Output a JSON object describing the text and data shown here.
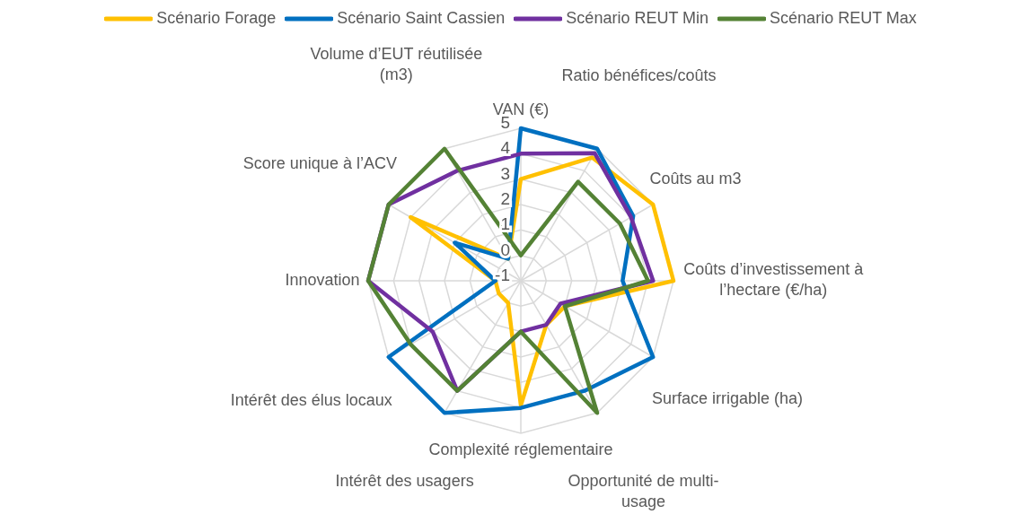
{
  "chart_data": {
    "type": "radar",
    "categories": [
      "VAN (€)",
      "Ratio bénéfices/coûts",
      "Coûts au m3",
      "Coûts d’investissement à l’hectare (€/ha)",
      "Surface irrigable (ha)",
      "Opportunité de multi-usage",
      "Complexité réglementaire",
      "Intérêt des usagers",
      "Intérêt des élus locaux",
      "Innovation",
      "Score unique à l’ACV",
      "Volume d’EUT réutilisée (m3)"
    ],
    "series": [
      {
        "name": "Scénario Forage",
        "color": "#ffc000",
        "values": [
          3,
          4.6,
          5,
          5,
          1,
          1,
          3.9,
          0,
          0,
          0,
          4,
          0
        ]
      },
      {
        "name": "Scénario Saint Cassien",
        "color": "#0070c0",
        "values": [
          5,
          5,
          4.1,
          3,
          5,
          4,
          4,
          5,
          5,
          0,
          2,
          0
        ]
      },
      {
        "name": "Scénario REUT Min",
        "color": "#7030a0",
        "values": [
          4,
          4.8,
          4,
          4.2,
          0.8,
          1,
          1,
          4,
          3,
          5,
          5,
          4
        ]
      },
      {
        "name": "Scénario REUT Max",
        "color": "#548235",
        "values": [
          0,
          3.5,
          3.5,
          4,
          1,
          5,
          1,
          4,
          4,
          5,
          5,
          5
        ]
      }
    ],
    "ylim": [
      -1,
      5
    ],
    "yticks": [
      -1,
      0,
      1,
      2,
      3,
      4,
      5
    ],
    "grid": true,
    "legend": "top",
    "marker": "none",
    "line_style": "solid"
  }
}
